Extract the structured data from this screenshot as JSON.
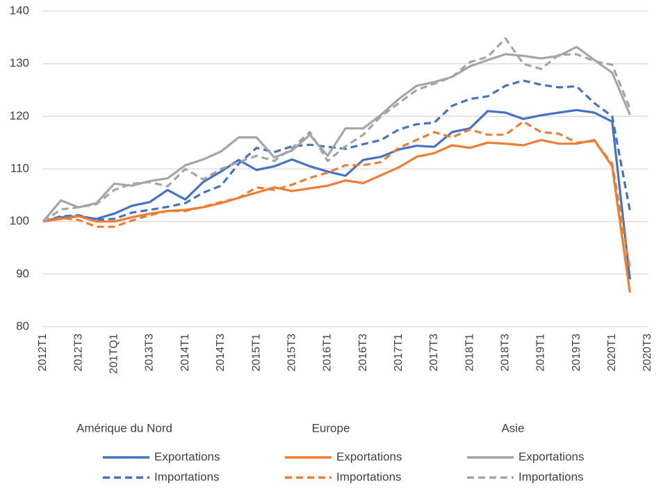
{
  "chart_data": {
    "type": "line",
    "categories": [
      "2012T1",
      null,
      "2012T3",
      null,
      "201TQ1",
      null,
      "2013T3",
      null,
      "2014T1",
      null,
      "2014T3",
      null,
      "2015T1",
      null,
      "2015T3",
      null,
      "2016T1",
      null,
      "2016T3",
      null,
      "2017T1",
      null,
      "2017T3",
      null,
      "2018T1",
      null,
      "2018T3",
      null,
      "2019T1",
      null,
      "2019T3",
      null,
      "2020T1",
      null,
      "2020T3"
    ],
    "ylim": [
      80,
      140
    ],
    "yticks": [
      80,
      90,
      100,
      110,
      120,
      130,
      140
    ],
    "grid": true,
    "legend_groups": [
      "Amérique du Nord",
      "Europe",
      "Asie"
    ],
    "series": [
      {
        "name": "Exportations",
        "color": "#4472c4",
        "linestyle": "solid",
        "values": [
          100,
          100.8,
          101,
          100.5,
          101.5,
          103,
          103.7,
          106,
          104.2,
          107.5,
          109.5,
          111.7,
          109.8,
          110.5,
          111.8,
          110.5,
          109.5,
          108.7,
          111.7,
          112.3,
          113.7,
          114.4,
          114.2,
          117,
          117.7,
          121,
          120.7,
          119.5,
          120.2,
          120.7,
          121.2,
          120.7,
          119,
          89,
          null
        ]
      },
      {
        "name": "Importations",
        "color": "#4472c4",
        "linestyle": "dashed",
        "values": [
          100,
          101,
          101.2,
          100.3,
          100.5,
          101.7,
          102.2,
          102.8,
          103.5,
          105.5,
          106.8,
          111,
          114,
          113.2,
          114.3,
          114.6,
          114.2,
          113.8,
          114.7,
          115.5,
          117.5,
          118.5,
          118.8,
          122,
          123.3,
          123.8,
          125.8,
          126.8,
          126,
          125.5,
          125.7,
          122.5,
          120,
          102,
          null
        ]
      },
      {
        "name": "Exportations",
        "color": "#ed7d31",
        "linestyle": "solid",
        "values": [
          100,
          100.5,
          101,
          100,
          100,
          100.8,
          101.5,
          102,
          102.2,
          102.7,
          103.5,
          104.5,
          105.5,
          106.5,
          105.8,
          106.3,
          106.8,
          107.8,
          107.3,
          108.8,
          110.3,
          112.3,
          113,
          114.5,
          114,
          115,
          114.8,
          114.5,
          115.5,
          114.8,
          114.8,
          115.5,
          110.5,
          86.5,
          null
        ]
      },
      {
        "name": "Importations",
        "color": "#ed7d31",
        "linestyle": "dashed",
        "values": [
          100,
          100.7,
          100.3,
          99,
          99,
          100.2,
          101.2,
          102,
          102,
          102.8,
          103.7,
          104.5,
          106.5,
          106,
          107,
          108.3,
          109.3,
          110.7,
          110.7,
          111.3,
          114,
          115.5,
          117,
          116,
          117.5,
          116.5,
          116.5,
          119,
          117,
          116.7,
          115,
          115.3,
          111,
          91,
          null
        ]
      },
      {
        "name": "Exportations",
        "color": "#a5a5a5",
        "linestyle": "solid",
        "values": [
          100,
          104,
          102.7,
          103.5,
          107.2,
          106.8,
          107.7,
          108.2,
          110.7,
          111.8,
          113.3,
          116,
          116,
          112.2,
          113.5,
          116.5,
          112.5,
          117.7,
          117.7,
          120.3,
          123.3,
          125.8,
          126.5,
          127.5,
          129.5,
          130.7,
          131.8,
          131.5,
          131,
          131.5,
          133.2,
          130.7,
          128.3,
          120.3,
          null
        ]
      },
      {
        "name": "Importations",
        "color": "#a5a5a5",
        "linestyle": "dashed",
        "values": [
          100,
          102.3,
          102.7,
          103.3,
          106,
          107.2,
          107.5,
          106.7,
          110,
          108,
          110,
          111.3,
          112.5,
          111.5,
          114,
          117,
          111.5,
          114.3,
          116.5,
          120,
          122.5,
          125,
          126.2,
          127.5,
          130.3,
          131.3,
          134.8,
          130,
          129,
          131.7,
          131.8,
          130.5,
          129.8,
          121.5,
          null
        ]
      }
    ]
  }
}
